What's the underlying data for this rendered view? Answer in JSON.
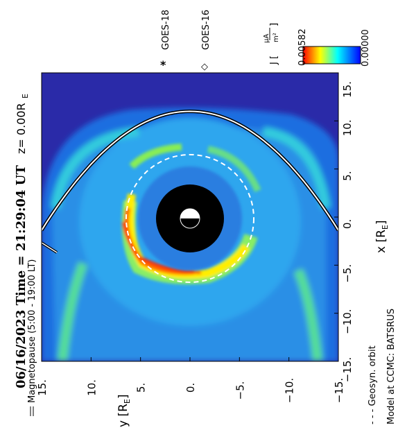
{
  "chart_data": {
    "type": "heatmap",
    "title_left": "06/16/2023 Time = 21:29:04 UT",
    "title_right": "z= 0.00R",
    "title_right_sub": "E",
    "xlabel": "x [R",
    "xlabel_sub": "E",
    "xlabel_end": "]",
    "ylabel": "y [R",
    "ylabel_sub": "E",
    "ylabel_end": "]",
    "x_range": [
      15,
      -15
    ],
    "y_range": [
      15,
      -15
    ],
    "x_ticks": [
      15,
      10,
      5,
      0,
      -5,
      -10,
      -15
    ],
    "y_ticks": [
      15,
      10,
      5,
      0,
      -5,
      -10,
      -15
    ],
    "x_tick_labels": [
      "15.",
      "10.",
      "5.",
      "0.",
      "−5.",
      "−10.",
      "−15."
    ],
    "y_tick_labels": [
      "15.",
      "10.",
      "5.",
      "0.",
      "−5.",
      "−10.",
      "−15."
    ],
    "colorbar": {
      "label": "J [",
      "unit_num": "μA",
      "unit_den": "m²",
      "label_end": "]",
      "min": 0.0,
      "max": 0.00582,
      "min_label": "0.00000",
      "max_label": "0.00582",
      "colors": [
        "#ff0000",
        "#ffff00",
        "#00ffff",
        "#0000ff"
      ]
    },
    "satellites": [
      {
        "name": "GOES-18",
        "marker": "*",
        "x": null,
        "y": null
      },
      {
        "name": "GOES-16",
        "marker": "◇",
        "x": null,
        "y": null
      }
    ],
    "legend": {
      "magnetopause": "Magnetopause (5:00 - 19:00 LT)",
      "geosyn": "- - - Geosyn. orbit",
      "source": "Model at CCMC: BATSRUS"
    },
    "magnetopause_standoff_re": 11.0,
    "geosync_radius_re": 6.6,
    "inner_boundary_re": 3.5,
    "colors": {
      "background": "#2a2aaa",
      "ring_high": "#ff2000",
      "magnetopause": "#ffffff",
      "geosync": "#ffffff"
    }
  }
}
